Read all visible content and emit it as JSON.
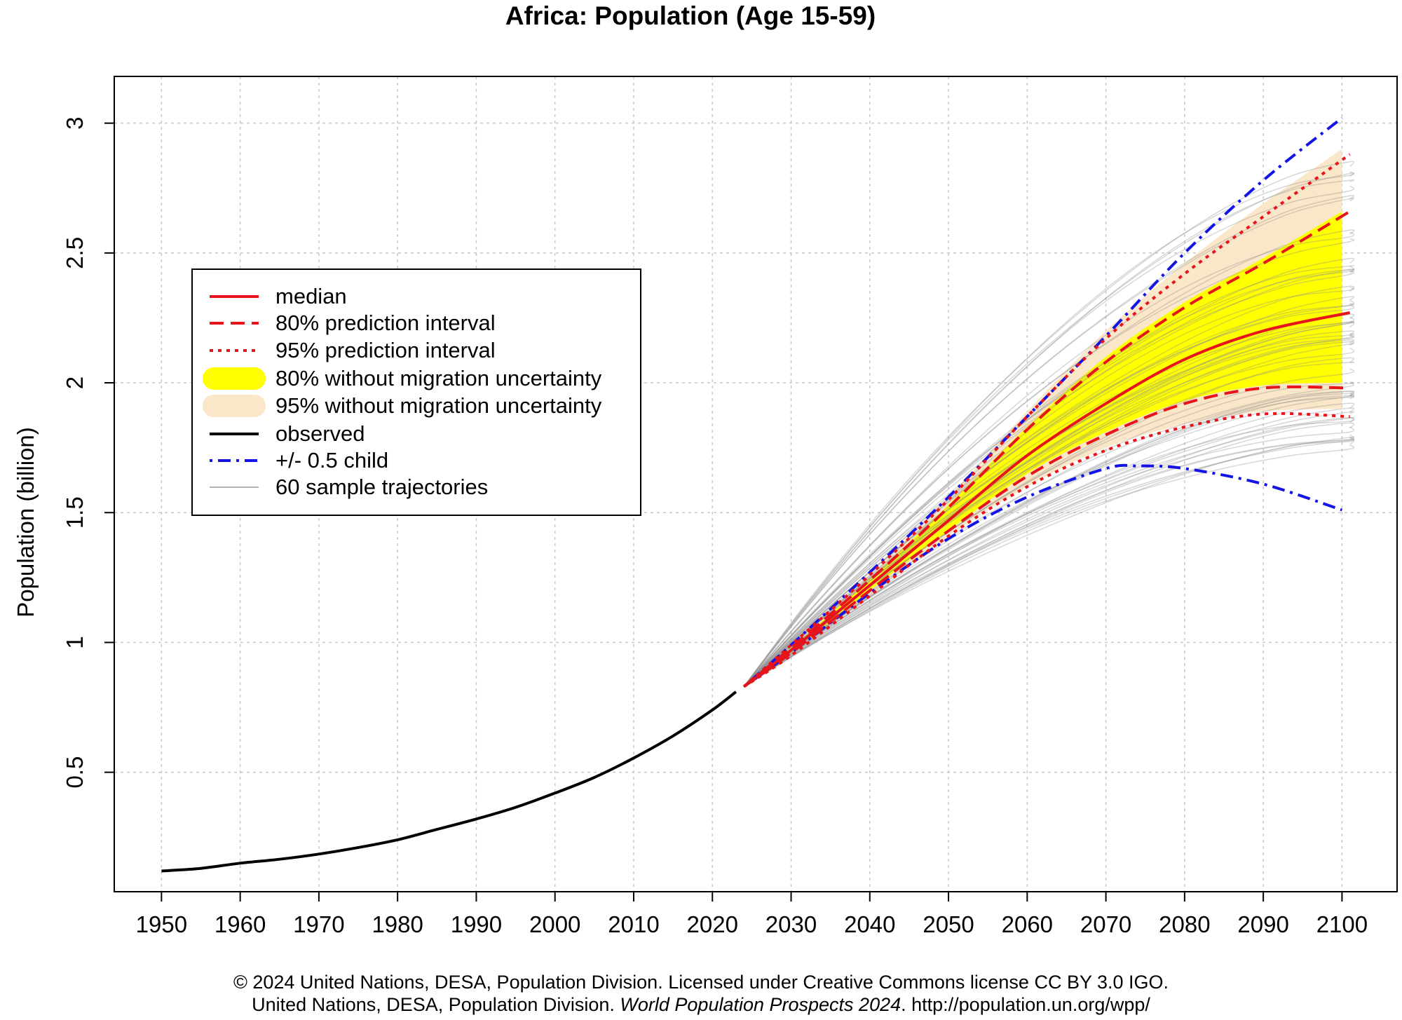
{
  "title": "Africa: Population (Age 15-59)",
  "footer": {
    "line1": "© 2024 United Nations, DESA, Population Division. Licensed under Creative Commons license CC BY 3.0 IGO.",
    "line2_prefix": "United Nations, DESA, Population Division. ",
    "line2_italic": "World Population Prospects 2024",
    "line2_suffix": ". http://population.un.org/wpp/"
  },
  "legend": {
    "items": [
      {
        "label": "median",
        "style": "solid",
        "color": "#e8141c"
      },
      {
        "label": "80% prediction interval",
        "style": "dashed",
        "color": "#e8141c"
      },
      {
        "label": "95% prediction interval",
        "style": "dotted",
        "color": "#e8141c"
      },
      {
        "label": "80% without migration uncertainty",
        "style": "band",
        "color": "#ffff00"
      },
      {
        "label": "95% without migration uncertainty",
        "style": "band",
        "color": "#fae6c8"
      },
      {
        "label": "observed",
        "style": "solid",
        "color": "#000000"
      },
      {
        "label": "+/- 0.5 child",
        "style": "dotdash",
        "color": "#1414e6"
      },
      {
        "label": "60 sample trajectories",
        "style": "thin",
        "color": "#b4b4b4"
      }
    ]
  },
  "chart_data": {
    "type": "line",
    "title": "Africa: Population (Age 15-59)",
    "xlabel": "",
    "ylabel": "Population (billion)",
    "xlim": [
      1944,
      2107
    ],
    "ylim": [
      0.04,
      3.18
    ],
    "x_ticks": [
      1950,
      1960,
      1970,
      1980,
      1990,
      2000,
      2010,
      2020,
      2030,
      2040,
      2050,
      2060,
      2070,
      2080,
      2090,
      2100
    ],
    "y_ticks": [
      0.5,
      1,
      1.5,
      2,
      2.5,
      3
    ],
    "y_tick_labels": [
      "0.5",
      "1",
      "1.5",
      "2",
      "2.5",
      "3"
    ],
    "grid": true,
    "series": [
      {
        "name": "observed",
        "x": [
          1950,
          1955,
          1960,
          1965,
          1970,
          1975,
          1980,
          1985,
          1990,
          1995,
          2000,
          2005,
          2010,
          2015,
          2020,
          2023
        ],
        "values": [
          0.12,
          0.13,
          0.15,
          0.165,
          0.185,
          0.21,
          0.24,
          0.28,
          0.32,
          0.365,
          0.42,
          0.48,
          0.555,
          0.64,
          0.74,
          0.81
        ]
      },
      {
        "name": "median",
        "x": [
          2024,
          2030,
          2040,
          2050,
          2060,
          2070,
          2080,
          2090,
          2101
        ],
        "values": [
          0.83,
          0.97,
          1.22,
          1.47,
          1.72,
          1.92,
          2.09,
          2.2,
          2.27
        ]
      },
      {
        "name": "80% prediction interval upper",
        "x": [
          2024,
          2030,
          2040,
          2050,
          2060,
          2070,
          2080,
          2090,
          2101
        ],
        "values": [
          0.83,
          0.98,
          1.24,
          1.52,
          1.82,
          2.08,
          2.29,
          2.46,
          2.66
        ]
      },
      {
        "name": "80% prediction interval lower",
        "x": [
          2024,
          2030,
          2040,
          2050,
          2060,
          2070,
          2080,
          2090,
          2101
        ],
        "values": [
          0.83,
          0.96,
          1.2,
          1.43,
          1.64,
          1.8,
          1.92,
          1.98,
          1.98
        ]
      },
      {
        "name": "95% prediction interval upper",
        "x": [
          2024,
          2030,
          2040,
          2050,
          2060,
          2070,
          2080,
          2090,
          2101
        ],
        "values": [
          0.83,
          0.99,
          1.26,
          1.55,
          1.87,
          2.17,
          2.42,
          2.64,
          2.88
        ]
      },
      {
        "name": "95% prediction interval lower",
        "x": [
          2024,
          2030,
          2040,
          2050,
          2060,
          2070,
          2080,
          2090,
          2101
        ],
        "values": [
          0.83,
          0.95,
          1.18,
          1.41,
          1.6,
          1.74,
          1.83,
          1.88,
          1.87
        ]
      },
      {
        "name": "80% without migration uncertainty upper",
        "x": [
          2024,
          2030,
          2040,
          2050,
          2060,
          2070,
          2080,
          2090,
          2100
        ],
        "values": [
          0.83,
          0.98,
          1.245,
          1.53,
          1.83,
          2.1,
          2.31,
          2.48,
          2.66
        ]
      },
      {
        "name": "80% without migration uncertainty lower",
        "x": [
          2024,
          2030,
          2040,
          2050,
          2060,
          2070,
          2080,
          2090,
          2100
        ],
        "values": [
          0.83,
          0.96,
          1.2,
          1.43,
          1.65,
          1.81,
          1.93,
          1.99,
          2.0
        ]
      },
      {
        "name": "95% without migration uncertainty upper",
        "x": [
          2024,
          2030,
          2040,
          2050,
          2060,
          2070,
          2080,
          2090,
          2100
        ],
        "values": [
          0.83,
          0.99,
          1.26,
          1.56,
          1.89,
          2.2,
          2.46,
          2.69,
          2.9
        ]
      },
      {
        "name": "95% without migration uncertainty lower",
        "x": [
          2024,
          2030,
          2040,
          2050,
          2060,
          2070,
          2080,
          2090,
          2100
        ],
        "values": [
          0.83,
          0.95,
          1.18,
          1.41,
          1.6,
          1.75,
          1.84,
          1.89,
          1.9
        ]
      },
      {
        "name": "+0.5 child",
        "x": [
          2024,
          2030,
          2040,
          2050,
          2060,
          2070,
          2080,
          2090,
          2100
        ],
        "values": [
          0.83,
          0.99,
          1.27,
          1.56,
          1.87,
          2.18,
          2.5,
          2.78,
          3.02
        ]
      },
      {
        "name": "-0.5 child",
        "x": [
          2024,
          2030,
          2040,
          2050,
          2060,
          2070,
          2074,
          2080,
          2090,
          2100
        ],
        "values": [
          0.83,
          0.96,
          1.19,
          1.4,
          1.56,
          1.67,
          1.68,
          1.67,
          1.61,
          1.51
        ]
      }
    ],
    "sample_trajectories": {
      "count": 60,
      "start": [
        2024,
        0.83
      ],
      "x_end": 2101,
      "end_min": 1.72,
      "end_max": 2.85
    }
  }
}
